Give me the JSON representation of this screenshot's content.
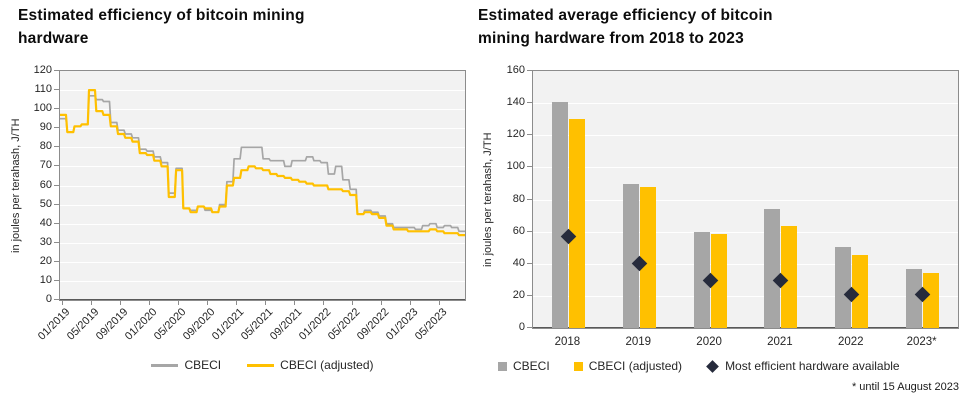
{
  "chart_data": [
    {
      "type": "line",
      "title": "Estimated efficiency of bitcoin mining hardware",
      "ylabel": "in joules per terahash, J/TH",
      "ylim": [
        0,
        120
      ],
      "grid": true,
      "legend_position": "bottom",
      "y_tick_labels": [
        "0",
        "10",
        "20",
        "30",
        "40",
        "50",
        "60",
        "70",
        "80",
        "90",
        "100",
        "110",
        "120"
      ],
      "x_tick_labels": [
        "01/2019",
        "05/2019",
        "09/2019",
        "01/2020",
        "05/2020",
        "09/2020",
        "01/2021",
        "05/2021",
        "09/2021",
        "01/2022",
        "05/2022",
        "09/2022",
        "01/2023",
        "05/2023"
      ],
      "x": [
        "01/2019",
        "02/2019",
        "03/2019",
        "04/2019",
        "05/2019",
        "06/2019",
        "07/2019",
        "08/2019",
        "09/2019",
        "10/2019",
        "11/2019",
        "12/2019",
        "01/2020",
        "02/2020",
        "03/2020",
        "04/2020",
        "05/2020",
        "06/2020",
        "07/2020",
        "08/2020",
        "09/2020",
        "10/2020",
        "11/2020",
        "12/2020",
        "01/2021",
        "02/2021",
        "03/2021",
        "04/2021",
        "05/2021",
        "06/2021",
        "07/2021",
        "08/2021",
        "09/2021",
        "10/2021",
        "11/2021",
        "12/2021",
        "01/2022",
        "02/2022",
        "03/2022",
        "04/2022",
        "05/2022",
        "06/2022",
        "07/2022",
        "08/2022",
        "09/2022",
        "10/2022",
        "11/2022",
        "12/2022",
        "01/2023",
        "02/2023",
        "03/2023",
        "04/2023",
        "05/2023",
        "06/2023",
        "07/2023",
        "08/2023"
      ],
      "series": [
        {
          "name": "CBECI",
          "color": "#A6A6A6",
          "marker": "line",
          "values": [
            95,
            88,
            91,
            92,
            107,
            105,
            104,
            93,
            89,
            87,
            85,
            79,
            78,
            75,
            72,
            56,
            69,
            48,
            47,
            49,
            47,
            46,
            50,
            62,
            74,
            80,
            80,
            80,
            74,
            73,
            73,
            70,
            73,
            73,
            75,
            73,
            72,
            66,
            70,
            63,
            58,
            45,
            47,
            46,
            44,
            40,
            38,
            38,
            38,
            37,
            39,
            40,
            38,
            39,
            38,
            36
          ]
        },
        {
          "name": "CBECI (adjusted)",
          "color": "#FFC000",
          "marker": "line",
          "values": [
            97,
            88,
            91,
            92,
            110,
            99,
            97,
            91,
            87,
            85,
            83,
            77,
            76,
            73,
            70,
            54,
            68,
            48,
            46,
            49,
            48,
            46,
            49,
            60,
            64,
            68,
            70,
            69,
            68,
            66,
            65,
            64,
            63,
            62,
            61,
            60,
            60,
            58,
            58,
            57,
            55,
            45,
            46,
            45,
            43,
            39,
            37,
            37,
            36,
            36,
            36,
            37,
            36,
            35,
            35,
            34
          ]
        }
      ]
    },
    {
      "type": "bar",
      "title": "Estimated average efficiency of bitcoin mining hardware from 2018 to 2023",
      "ylabel": "in joules per terahash, J/TH",
      "ylim": [
        0,
        160
      ],
      "grid": true,
      "legend_position": "bottom",
      "y_tick_labels": [
        "0",
        "20",
        "40",
        "60",
        "80",
        "100",
        "120",
        "140",
        "160"
      ],
      "categories": [
        "2018",
        "2019",
        "2020",
        "2021",
        "2022",
        "2023*"
      ],
      "series": [
        {
          "name": "CBECI",
          "type": "bar",
          "color": "#A6A6A6",
          "marker": "square",
          "values": [
            140.5,
            89.5,
            59.5,
            74,
            50.5,
            37
          ]
        },
        {
          "name": "CBECI (adjusted)",
          "type": "bar",
          "color": "#FFC000",
          "marker": "square",
          "values": [
            130,
            88,
            58.5,
            63.5,
            45.5,
            34.5
          ]
        },
        {
          "name": "Most efficient hardware available",
          "type": "scatter",
          "color": "#262B3C",
          "marker": "diamond",
          "values": [
            57,
            40,
            29.5,
            29.5,
            21,
            21
          ]
        }
      ],
      "footnote": "* until 15 August 2023"
    }
  ]
}
